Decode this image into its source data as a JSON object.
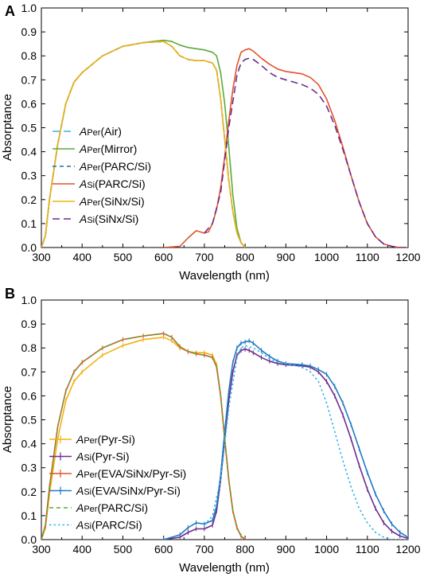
{
  "chart_data": [
    {
      "panel_label": "A",
      "type": "line",
      "xlabel": "Wavelength (nm)",
      "ylabel": "Absorptance",
      "xlim": [
        300,
        1200
      ],
      "ylim": [
        0,
        1.0
      ],
      "xticks": [
        300,
        400,
        500,
        600,
        700,
        800,
        900,
        1000,
        1100,
        1200
      ],
      "yticks": [
        0.0,
        0.1,
        0.2,
        0.3,
        0.4,
        0.5,
        0.6,
        0.7,
        0.8,
        0.9,
        1.0
      ],
      "xtick_labels": [
        "300",
        "400",
        "500",
        "600",
        "700",
        "800",
        "900",
        "1000",
        "1100",
        "1200"
      ],
      "ytick_labels": [
        "0.0",
        "0.1",
        "0.2",
        "0.3",
        "0.4",
        "0.5",
        "0.6",
        "0.7",
        "0.8",
        "0.9",
        "1.0"
      ],
      "grid": false,
      "legend_position": "bottom-left",
      "series": [
        {
          "legend_main": "A",
          "legend_sub": "Per",
          "legend_rest": "(Air)",
          "color": "#35b6e8",
          "dash": "long-dash",
          "x": [
            300,
            310,
            320,
            340,
            360,
            380,
            400,
            450,
            500,
            550,
            600,
            620,
            640,
            660,
            680,
            700,
            720,
            730,
            740,
            750,
            760,
            770,
            780,
            790,
            800
          ],
          "y": [
            0.0,
            0.05,
            0.2,
            0.43,
            0.6,
            0.69,
            0.73,
            0.8,
            0.84,
            0.855,
            0.86,
            0.84,
            0.8,
            0.785,
            0.78,
            0.78,
            0.77,
            0.74,
            0.62,
            0.45,
            0.28,
            0.15,
            0.06,
            0.02,
            0.0
          ]
        },
        {
          "legend_main": "A",
          "legend_sub": "Per",
          "legend_rest": "(Mirror)",
          "color": "#5aaa3a",
          "dash": "solid",
          "x": [
            300,
            310,
            320,
            340,
            360,
            380,
            400,
            450,
            500,
            550,
            600,
            620,
            640,
            660,
            680,
            700,
            720,
            730,
            740,
            750,
            760,
            770,
            780,
            790,
            800
          ],
          "y": [
            0.0,
            0.05,
            0.2,
            0.43,
            0.6,
            0.69,
            0.73,
            0.8,
            0.84,
            0.855,
            0.865,
            0.86,
            0.845,
            0.835,
            0.83,
            0.825,
            0.815,
            0.8,
            0.73,
            0.6,
            0.42,
            0.22,
            0.08,
            0.02,
            0.0
          ]
        },
        {
          "legend_main": "A",
          "legend_sub": "Per",
          "legend_rest": "(PARC/Si)",
          "color": "#1f6fb5",
          "dash": "dash",
          "x": [
            300,
            310,
            320,
            340,
            360,
            380,
            400,
            450,
            500,
            550,
            600,
            620,
            640,
            660,
            680,
            700,
            720,
            730,
            740,
            750,
            760,
            770,
            780,
            790,
            800
          ],
          "y": [
            0.0,
            0.05,
            0.2,
            0.43,
            0.6,
            0.69,
            0.73,
            0.8,
            0.84,
            0.855,
            0.86,
            0.84,
            0.8,
            0.785,
            0.78,
            0.78,
            0.77,
            0.74,
            0.62,
            0.45,
            0.28,
            0.15,
            0.06,
            0.02,
            0.0
          ]
        },
        {
          "legend_main": "A",
          "legend_sub": "Si",
          "legend_rest": "(PARC/Si)",
          "color": "#e2522b",
          "dash": "solid",
          "x": [
            600,
            640,
            660,
            680,
            700,
            710,
            720,
            730,
            740,
            750,
            760,
            770,
            780,
            790,
            800,
            810,
            820,
            840,
            860,
            880,
            900,
            940,
            960,
            980,
            1000,
            1020,
            1040,
            1060,
            1080,
            1100,
            1120,
            1140,
            1160,
            1180,
            1200
          ],
          "y": [
            0.0,
            0.005,
            0.04,
            0.07,
            0.06,
            0.065,
            0.1,
            0.16,
            0.25,
            0.38,
            0.53,
            0.66,
            0.76,
            0.815,
            0.825,
            0.83,
            0.82,
            0.79,
            0.765,
            0.745,
            0.735,
            0.725,
            0.71,
            0.68,
            0.62,
            0.53,
            0.42,
            0.3,
            0.19,
            0.1,
            0.045,
            0.015,
            0.005,
            0.0,
            0.0
          ]
        },
        {
          "legend_main": "A",
          "legend_sub": "Per",
          "legend_rest": "(SiNx/Si)",
          "color": "#f2b213",
          "dash": "solid",
          "x": [
            300,
            310,
            320,
            340,
            360,
            380,
            400,
            450,
            500,
            550,
            600,
            620,
            640,
            660,
            680,
            700,
            720,
            730,
            740,
            750,
            760,
            770,
            780,
            790,
            800
          ],
          "y": [
            0.0,
            0.05,
            0.2,
            0.43,
            0.6,
            0.69,
            0.73,
            0.8,
            0.84,
            0.855,
            0.86,
            0.84,
            0.8,
            0.785,
            0.78,
            0.78,
            0.77,
            0.74,
            0.62,
            0.45,
            0.28,
            0.15,
            0.06,
            0.02,
            0.0
          ]
        },
        {
          "legend_main": "A",
          "legend_sub": "Si",
          "legend_rest": "(SiNx/Si)",
          "color": "#6d2c8c",
          "dash": "long-dash",
          "x": [
            700,
            720,
            740,
            760,
            780,
            790,
            800,
            810,
            820,
            840,
            860,
            880,
            900,
            940,
            960,
            980,
            1000,
            1020,
            1040,
            1060,
            1080,
            1100,
            1120,
            1140,
            1160,
            1180,
            1200
          ],
          "y": [
            0.06,
            0.1,
            0.23,
            0.5,
            0.72,
            0.77,
            0.785,
            0.79,
            0.785,
            0.76,
            0.73,
            0.71,
            0.7,
            0.68,
            0.665,
            0.64,
            0.59,
            0.51,
            0.41,
            0.3,
            0.19,
            0.1,
            0.045,
            0.015,
            0.005,
            0.0,
            0.0
          ]
        }
      ]
    },
    {
      "panel_label": "B",
      "type": "line",
      "xlabel": "Wavelength (nm)",
      "ylabel": "Absorptance",
      "xlim": [
        300,
        1200
      ],
      "ylim": [
        0,
        1.0
      ],
      "xticks": [
        300,
        400,
        500,
        600,
        700,
        800,
        900,
        1000,
        1100,
        1200
      ],
      "yticks": [
        0.0,
        0.1,
        0.2,
        0.3,
        0.4,
        0.5,
        0.6,
        0.7,
        0.8,
        0.9,
        1.0
      ],
      "xtick_labels": [
        "300",
        "400",
        "500",
        "600",
        "700",
        "800",
        "900",
        "1000",
        "1100",
        "1200"
      ],
      "ytick_labels": [
        "0.0",
        "0.1",
        "0.2",
        "0.3",
        "0.4",
        "0.5",
        "0.6",
        "0.7",
        "0.8",
        "0.9",
        "1.0"
      ],
      "grid": false,
      "legend_position": "bottom-left",
      "series": [
        {
          "legend_main": "A",
          "legend_sub": "Per",
          "legend_rest": "(Pyr-Si)",
          "color": "#f2b213",
          "dash": "solid",
          "error_bars": true,
          "x": [
            300,
            310,
            320,
            340,
            360,
            380,
            400,
            450,
            500,
            550,
            600,
            620,
            640,
            660,
            680,
            700,
            720,
            730,
            740,
            750,
            760,
            770,
            780,
            790,
            800
          ],
          "y": [
            0.0,
            0.05,
            0.19,
            0.42,
            0.58,
            0.66,
            0.7,
            0.77,
            0.81,
            0.835,
            0.845,
            0.83,
            0.8,
            0.785,
            0.78,
            0.78,
            0.77,
            0.73,
            0.6,
            0.42,
            0.25,
            0.12,
            0.05,
            0.015,
            0.0
          ]
        },
        {
          "legend_main": "A",
          "legend_sub": "Si",
          "legend_rest": "(Pyr-Si)",
          "color": "#6d2c8c",
          "dash": "solid",
          "error_bars": true,
          "x": [
            600,
            640,
            660,
            680,
            700,
            720,
            730,
            740,
            750,
            760,
            770,
            780,
            790,
            800,
            810,
            820,
            840,
            860,
            880,
            900,
            940,
            960,
            980,
            1000,
            1020,
            1040,
            1060,
            1080,
            1100,
            1120,
            1140,
            1160,
            1180,
            1200
          ],
          "y": [
            0.0,
            0.01,
            0.03,
            0.045,
            0.045,
            0.06,
            0.12,
            0.25,
            0.42,
            0.58,
            0.7,
            0.77,
            0.79,
            0.795,
            0.79,
            0.78,
            0.76,
            0.745,
            0.735,
            0.73,
            0.725,
            0.72,
            0.7,
            0.66,
            0.6,
            0.52,
            0.42,
            0.31,
            0.21,
            0.13,
            0.07,
            0.035,
            0.015,
            0.005
          ]
        },
        {
          "legend_main": "A",
          "legend_sub": "Per",
          "legend_rest": "(EVA/SiNx/Pyr-Si)",
          "color": "#e2522b",
          "dash": "solid",
          "error_bars": true,
          "x": [
            300,
            310,
            320,
            340,
            360,
            380,
            400,
            450,
            500,
            550,
            600,
            620,
            640,
            660,
            680,
            700,
            720,
            730,
            740,
            750,
            760,
            770,
            780,
            790,
            800
          ],
          "y": [
            0.0,
            0.06,
            0.22,
            0.47,
            0.62,
            0.7,
            0.74,
            0.8,
            0.835,
            0.85,
            0.86,
            0.845,
            0.805,
            0.785,
            0.775,
            0.77,
            0.76,
            0.72,
            0.6,
            0.42,
            0.25,
            0.12,
            0.05,
            0.015,
            0.0
          ]
        },
        {
          "legend_main": "A",
          "legend_sub": "Si",
          "legend_rest": "(EVA/SiNx/Pyr-Si)",
          "color": "#1f7ac4",
          "dash": "solid",
          "error_bars": true,
          "x": [
            600,
            640,
            660,
            680,
            700,
            720,
            730,
            740,
            750,
            760,
            770,
            780,
            790,
            800,
            810,
            820,
            840,
            860,
            880,
            900,
            940,
            960,
            980,
            1000,
            1020,
            1040,
            1060,
            1080,
            1100,
            1120,
            1140,
            1160,
            1180,
            1200
          ],
          "y": [
            0.0,
            0.02,
            0.05,
            0.07,
            0.065,
            0.08,
            0.14,
            0.27,
            0.45,
            0.62,
            0.74,
            0.8,
            0.82,
            0.825,
            0.83,
            0.82,
            0.79,
            0.765,
            0.745,
            0.735,
            0.73,
            0.725,
            0.71,
            0.69,
            0.64,
            0.57,
            0.48,
            0.38,
            0.28,
            0.19,
            0.12,
            0.065,
            0.03,
            0.01
          ]
        },
        {
          "legend_main": "A",
          "legend_sub": "Per",
          "legend_rest": "(PARC/Si)",
          "color": "#5aaa3a",
          "dash": "dash",
          "x": [
            300,
            310,
            320,
            340,
            360,
            380,
            400,
            450,
            500,
            550,
            600,
            620,
            640,
            660,
            680,
            700,
            720,
            730,
            740,
            750,
            760,
            770,
            780,
            790,
            800
          ],
          "y": [
            0.0,
            0.06,
            0.22,
            0.47,
            0.62,
            0.7,
            0.74,
            0.8,
            0.835,
            0.85,
            0.86,
            0.845,
            0.805,
            0.785,
            0.775,
            0.77,
            0.76,
            0.72,
            0.6,
            0.42,
            0.25,
            0.12,
            0.05,
            0.015,
            0.0
          ]
        },
        {
          "legend_main": "A",
          "legend_sub": "Si",
          "legend_rest": "(PARC/Si)",
          "color": "#35b6e8",
          "dash": "dot",
          "x": [
            700,
            720,
            740,
            760,
            780,
            790,
            800,
            820,
            840,
            860,
            880,
            900,
            940,
            960,
            980,
            1000,
            1020,
            1040,
            1060,
            1080,
            1100,
            1120,
            1140,
            1160,
            1180,
            1200
          ],
          "y": [
            0.06,
            0.1,
            0.25,
            0.55,
            0.76,
            0.8,
            0.81,
            0.8,
            0.78,
            0.755,
            0.74,
            0.735,
            0.72,
            0.7,
            0.66,
            0.57,
            0.45,
            0.33,
            0.22,
            0.13,
            0.07,
            0.03,
            0.01,
            0.0,
            0.0,
            0.0
          ]
        }
      ]
    }
  ]
}
